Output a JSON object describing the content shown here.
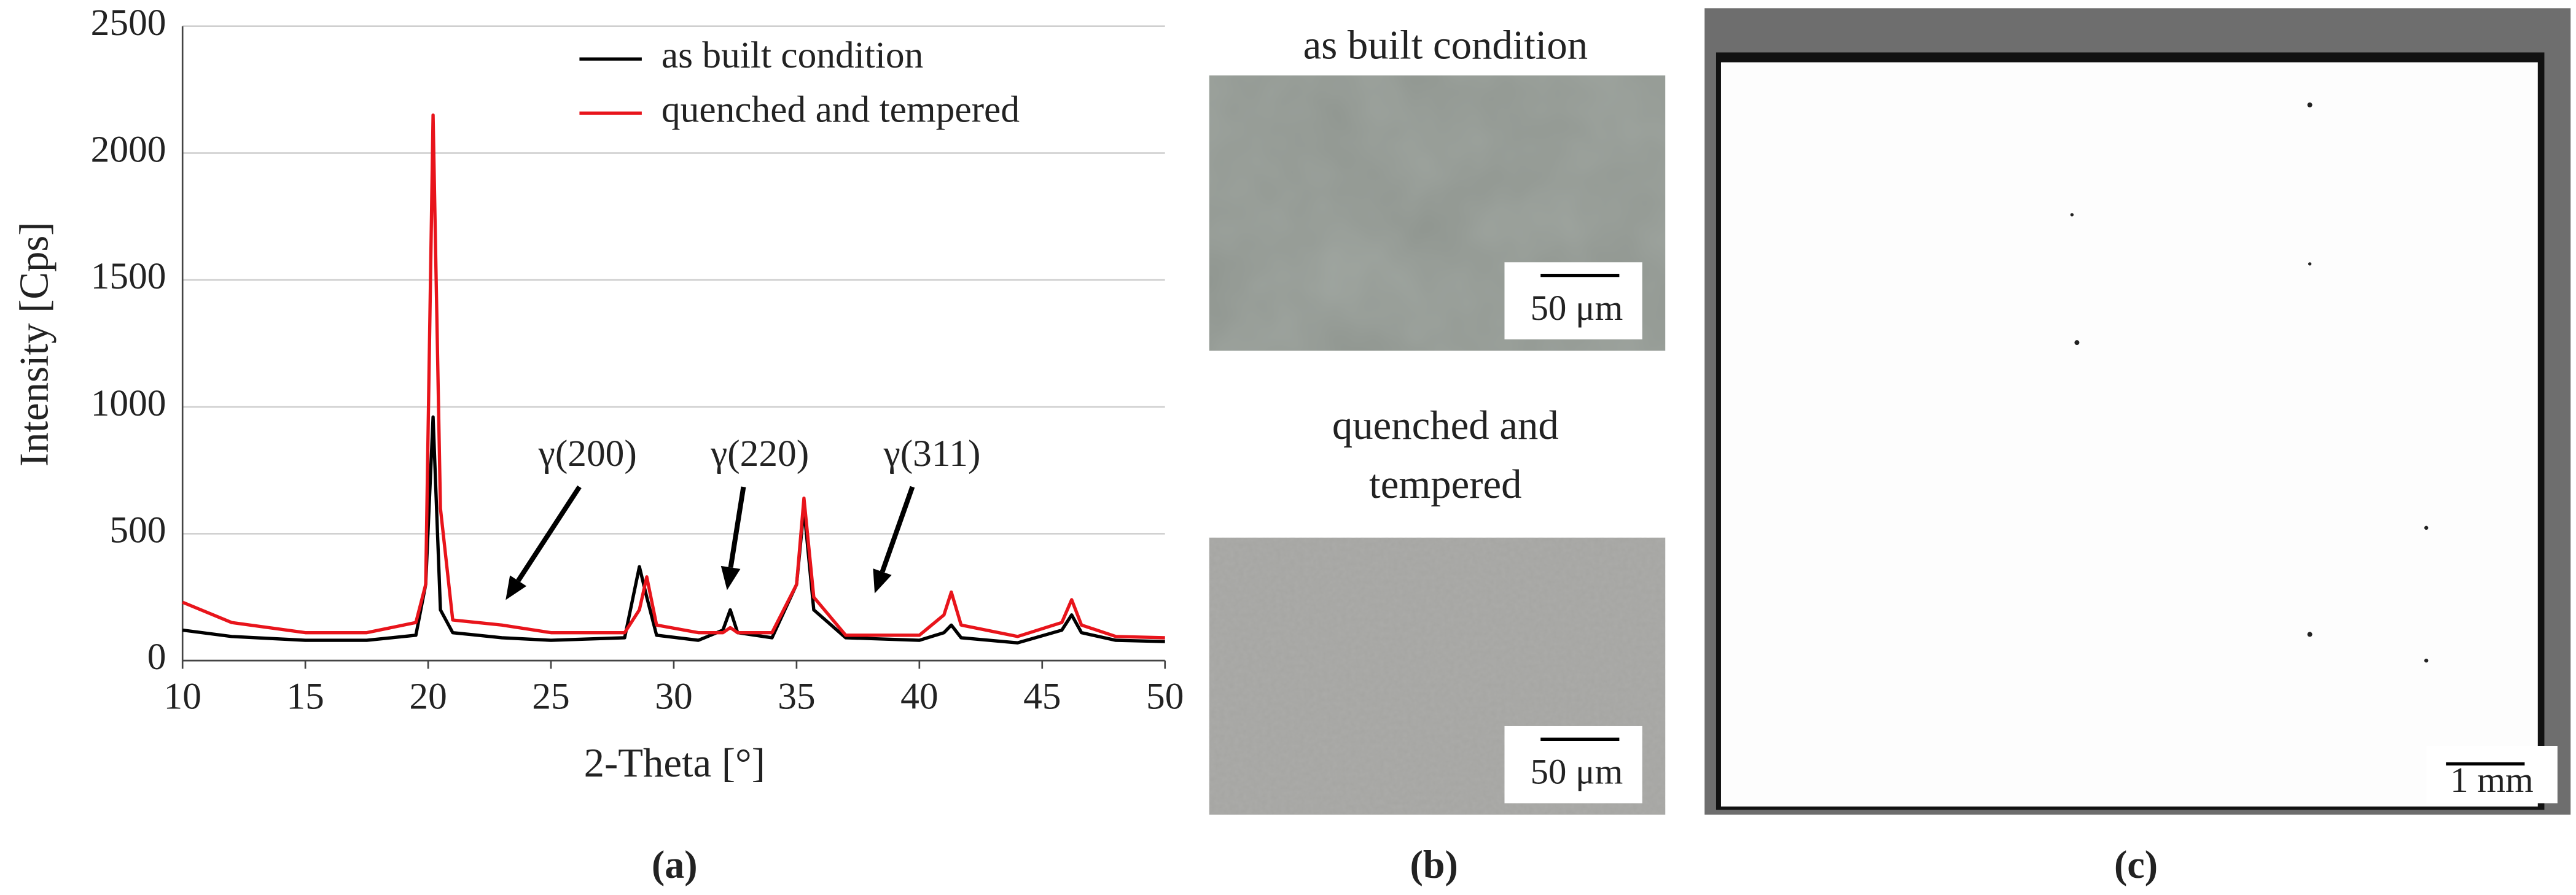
{
  "chart_data": {
    "type": "line",
    "xlabel": "2-Theta [°]",
    "ylabel": "Intensity [Cps]",
    "x": [
      10,
      12,
      15,
      17.5,
      19.5,
      19.9,
      20.2,
      20.5,
      21,
      23,
      25,
      28,
      28.6,
      28.9,
      29.3,
      31,
      32.0,
      32.3,
      32.6,
      34,
      35.0,
      35.3,
      35.7,
      37,
      40,
      41.0,
      41.3,
      41.7,
      44,
      45.8,
      46.2,
      46.6,
      48,
      50
    ],
    "series": [
      {
        "name": "as built condition",
        "color": "#000000",
        "values": [
          120,
          95,
          80,
          80,
          100,
          300,
          960,
          200,
          110,
          90,
          80,
          90,
          370,
          250,
          100,
          80,
          120,
          200,
          110,
          90,
          300,
          600,
          200,
          90,
          80,
          110,
          140,
          90,
          70,
          120,
          180,
          110,
          80,
          75
        ]
      },
      {
        "name": "quenched and tempered",
        "color": "#e8141b",
        "values": [
          230,
          150,
          110,
          110,
          150,
          300,
          2150,
          600,
          160,
          140,
          110,
          110,
          200,
          330,
          140,
          110,
          110,
          130,
          110,
          110,
          300,
          640,
          250,
          100,
          100,
          180,
          270,
          140,
          95,
          150,
          240,
          140,
          95,
          90
        ]
      }
    ],
    "xlim": [
      10,
      50
    ],
    "xticks": [
      10,
      15,
      20,
      25,
      30,
      35,
      40,
      45,
      50
    ],
    "ylim": [
      0,
      2500
    ],
    "yticks": [
      0,
      500,
      1000,
      1500,
      2000,
      2500
    ],
    "grid": true,
    "legend": "upper right",
    "annotations": [
      "γ(200)",
      "γ(220)",
      "γ(311)"
    ]
  },
  "micrographs": [
    {
      "title_lines": [
        "as built condition"
      ],
      "scale_bar": "50 μm"
    },
    {
      "title_lines": [
        "quenched and",
        "tempered"
      ],
      "scale_bar": "50 μm"
    }
  ],
  "overview": {
    "scale_bar": "1 mm"
  },
  "panel_labels": [
    "(a)",
    "(b)",
    "(c)"
  ]
}
